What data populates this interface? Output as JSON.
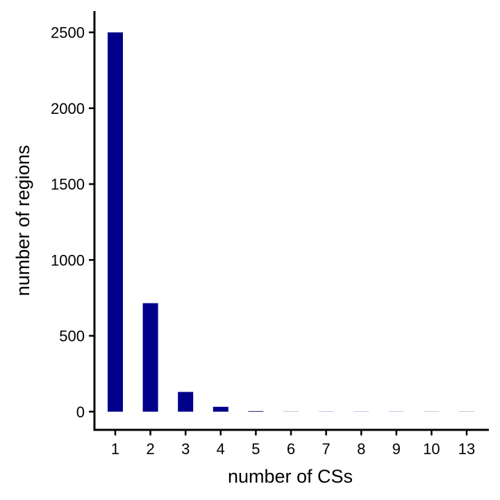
{
  "chart_data": {
    "type": "bar",
    "title": "",
    "xlabel": "number of CSs",
    "ylabel": "number of regions",
    "categories": [
      "1",
      "2",
      "3",
      "4",
      "5",
      "6",
      "7",
      "8",
      "9",
      "10",
      "13"
    ],
    "values": [
      2500,
      715,
      130,
      32,
      4,
      1,
      1,
      1,
      1,
      1,
      1
    ],
    "ylim": [
      -120,
      2640
    ],
    "yticks": [
      0,
      500,
      1000,
      1500,
      2000,
      2500
    ],
    "bar_color": "#00008B",
    "grid": false,
    "legend": "none"
  }
}
